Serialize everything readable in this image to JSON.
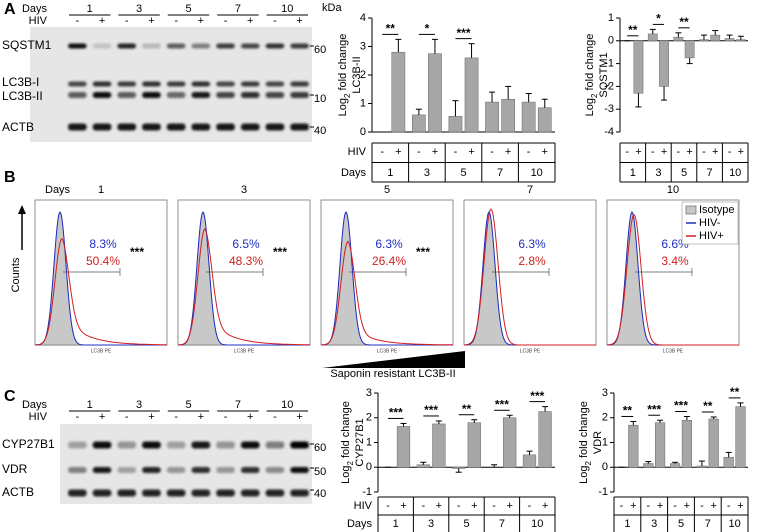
{
  "panel_labels": [
    "A",
    "B",
    "C"
  ],
  "blot_a": {
    "days_label": "Days",
    "days": [
      "1",
      "3",
      "5",
      "7",
      "10"
    ],
    "hiv_label": "HIV",
    "hiv": [
      "-",
      "+"
    ],
    "kda_label": "kDa",
    "rows": [
      {
        "labels": [
          "SQSTM1"
        ],
        "kda": "60"
      },
      {
        "labels": [
          "LC3B-I",
          "LC3B-II"
        ],
        "kda": "10"
      },
      {
        "labels": [
          "ACTB"
        ],
        "kda": "40"
      }
    ]
  },
  "blot_c": {
    "days_label": "Days",
    "days": [
      "1",
      "3",
      "5",
      "7",
      "10"
    ],
    "hiv_label": "HIV",
    "hiv": [
      "-",
      "+"
    ],
    "rows": [
      {
        "labels": [
          "CYP27B1"
        ],
        "kda": "60"
      },
      {
        "labels": [
          "VDR"
        ],
        "kda": "50"
      },
      {
        "labels": [
          "ACTB"
        ],
        "kda": "40"
      }
    ]
  },
  "flow": {
    "days_label": "Days",
    "ylabel": "Counts",
    "xlabel": "LC3B PE",
    "gradient_label": "Saponin resistant LC3B-II",
    "legend": [
      "Isotype",
      "HIV-",
      "HIV+"
    ],
    "panels": [
      {
        "day": "1",
        "neg": "8.3%",
        "pos": "50.4%",
        "sig": "***"
      },
      {
        "day": "3",
        "neg": "6.5%",
        "pos": "48.3%",
        "sig": "***"
      },
      {
        "day": "5",
        "neg": "6.3%",
        "pos": "26.4%",
        "sig": "***"
      },
      {
        "day": "7",
        "neg": "6.3%",
        "pos": "2.8%"
      },
      {
        "day": "10",
        "neg": "6.6%",
        "pos": "3.4%"
      }
    ]
  },
  "chart_data": [
    {
      "type": "bar",
      "ylabel": [
        "Log",
        "2",
        " fold change",
        "LC3B-II"
      ],
      "series_label": "HIV",
      "category_label": "Days",
      "categories": [
        "1",
        "3",
        "5",
        "7",
        "10"
      ],
      "series": [
        {
          "name": "-",
          "color": "#a6a6a6",
          "values": [
            0,
            0.6,
            0.55,
            1.05,
            1.05
          ],
          "errors": [
            0,
            0.2,
            0.55,
            0.35,
            0.3
          ]
        },
        {
          "name": "+",
          "color": "#a6a6a6",
          "values": [
            2.8,
            2.75,
            2.6,
            1.15,
            0.85
          ],
          "errors": [
            0.45,
            0.5,
            0.5,
            0.45,
            0.3
          ]
        }
      ],
      "significance": [
        "**",
        "*",
        "***",
        null,
        null
      ],
      "ylim": [
        0,
        4
      ],
      "yticks": [
        0,
        1,
        2,
        3,
        4
      ]
    },
    {
      "type": "bar",
      "ylabel": [
        "Log",
        "2",
        " fold change",
        "SQSTM1"
      ],
      "categories": [
        "1",
        "3",
        "5",
        "7",
        "10"
      ],
      "series": [
        {
          "name": "-",
          "color": "#a6a6a6",
          "values": [
            0,
            0.3,
            0.15,
            0.05,
            0.1
          ],
          "errors": [
            0,
            0.2,
            0.2,
            0.2,
            0.15
          ]
        },
        {
          "name": "+",
          "color": "#a6a6a6",
          "values": [
            -2.3,
            -2.0,
            -0.75,
            0.25,
            0.05
          ],
          "errors": [
            0.6,
            0.6,
            0.25,
            0.2,
            0.15
          ]
        }
      ],
      "significance": [
        "**",
        "*",
        "**",
        null,
        null
      ],
      "ylim": [
        -4,
        1
      ],
      "yticks": [
        1,
        0,
        -1,
        -2,
        -3,
        -4
      ]
    },
    {
      "type": "bar",
      "ylabel": [
        "Log",
        "2",
        " fold change",
        "CYP27B1"
      ],
      "series_label": "HIV",
      "category_label": "Days",
      "categories": [
        "1",
        "3",
        "5",
        "7",
        "10"
      ],
      "series": [
        {
          "name": "-",
          "color": "#a6a6a6",
          "values": [
            0,
            0.1,
            -0.05,
            0,
            0.5
          ],
          "errors": [
            0,
            0.1,
            0.15,
            0.1,
            0.15
          ]
        },
        {
          "name": "+",
          "color": "#a6a6a6",
          "values": [
            1.65,
            1.75,
            1.8,
            2.0,
            2.25
          ],
          "errors": [
            0.12,
            0.12,
            0.12,
            0.1,
            0.2
          ]
        }
      ],
      "significance": [
        "***",
        "***",
        "**",
        "***",
        "***"
      ],
      "ylim": [
        -1,
        3
      ],
      "yticks": [
        -1,
        0,
        1,
        2,
        3
      ]
    },
    {
      "type": "bar",
      "ylabel": [
        "Log",
        "2",
        " fold change",
        "VDR"
      ],
      "categories": [
        "1",
        "3",
        "5",
        "7",
        "10"
      ],
      "series": [
        {
          "name": "-",
          "color": "#a6a6a6",
          "values": [
            0,
            0.15,
            0.15,
            0.05,
            0.4
          ],
          "errors": [
            0,
            0.08,
            0.05,
            0.2,
            0.2
          ]
        },
        {
          "name": "+",
          "color": "#a6a6a6",
          "values": [
            1.7,
            1.8,
            1.9,
            1.95,
            2.45
          ],
          "errors": [
            0.15,
            0.1,
            0.15,
            0.08,
            0.15
          ]
        }
      ],
      "significance": [
        "**",
        "***",
        "***",
        "**",
        "**"
      ],
      "ylim": [
        -1,
        3
      ],
      "yticks": [
        -1,
        0,
        1,
        2,
        3
      ]
    }
  ]
}
